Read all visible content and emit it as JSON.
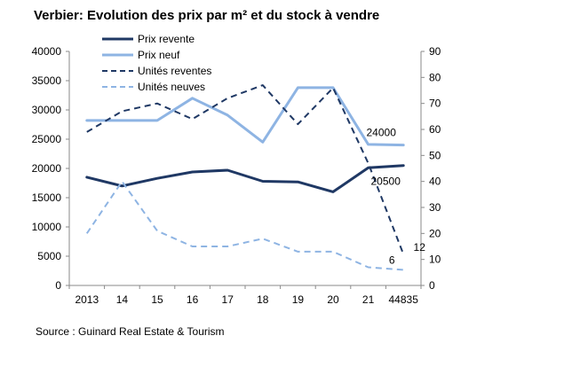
{
  "title": "Verbier:  Evolution des prix par m² et du stock à vendre",
  "source": "Source : Guinard Real Estate & Tourism",
  "chart_data": {
    "type": "line",
    "title": "Verbier:  Evolution des prix par m² et du stock à vendre",
    "categories": [
      "2013",
      "14",
      "15",
      "16",
      "17",
      "18",
      "19",
      "20",
      "21",
      "44835"
    ],
    "y_left": {
      "min": 0,
      "max": 40000,
      "ticks": [
        "0",
        "5000",
        "10000",
        "15000",
        "20000",
        "25000",
        "30000",
        "35000",
        "40000"
      ]
    },
    "y_right": {
      "min": 0,
      "max": 90,
      "ticks": [
        "0",
        "10",
        "20",
        "30",
        "40",
        "50",
        "60",
        "70",
        "80",
        "90"
      ]
    },
    "series": [
      {
        "name": "Prix revente",
        "axis": "left",
        "style": "solid",
        "color": "#1f3864",
        "values": [
          18500,
          17000,
          18300,
          19400,
          19700,
          17800,
          17700,
          16000,
          20100,
          20500
        ]
      },
      {
        "name": "Prix neuf",
        "axis": "left",
        "style": "solid",
        "color": "#8eb4e3",
        "values": [
          28200,
          28200,
          28200,
          32000,
          29100,
          24500,
          33800,
          33800,
          24100,
          24000
        ]
      },
      {
        "name": "Unités reventes",
        "axis": "right",
        "style": "dashed",
        "color": "#1f3864",
        "values": [
          59,
          67,
          70,
          64,
          72,
          77,
          62,
          76,
          47,
          12
        ]
      },
      {
        "name": "Unités neuves",
        "axis": "right",
        "style": "dashed",
        "color": "#8eb4e3",
        "values": [
          20,
          40,
          21,
          15,
          15,
          18,
          13,
          13,
          7,
          6
        ]
      }
    ],
    "data_labels": [
      {
        "text": "24000",
        "series": "Prix neuf"
      },
      {
        "text": "20500",
        "series": "Prix revente"
      },
      {
        "text": "6",
        "series": "Unités neuves"
      },
      {
        "text": "12",
        "series": "Unités reventes"
      }
    ],
    "legend": "top-left"
  }
}
